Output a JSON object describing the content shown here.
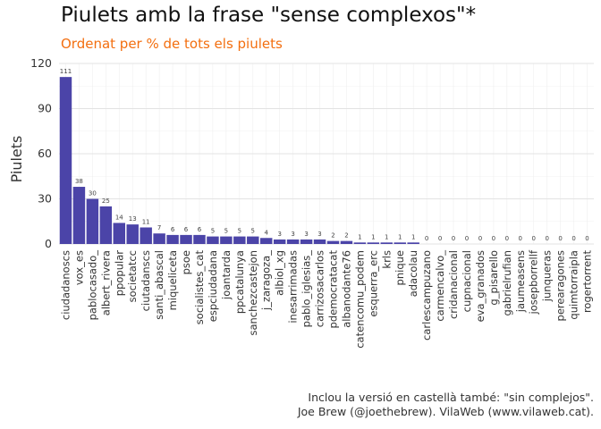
{
  "title": "Piulets amb la frase \"sense complexos\"*",
  "subtitle": "Ordenat per % de tots els piulets",
  "caption_line1": "Inclou la versió en castellà també: \"sin complejos\".",
  "caption_line2": "Joe Brew (@joethebrew). VilaWeb (www.vilaweb.cat).",
  "colors": {
    "bar": "#4b44a8",
    "grid": "#e3e3e3",
    "subtitle": "#f36f10"
  },
  "chart_data": {
    "type": "bar",
    "title": "Piulets amb la frase \"sense complexos\"*",
    "subtitle": "Ordenat per % de tots els piulets",
    "xlabel": "",
    "ylabel": "Piulets",
    "ylim": [
      0,
      120
    ],
    "yticks": [
      0,
      30,
      60,
      90,
      120
    ],
    "grid": true,
    "categories": [
      "ciudadanoscs",
      "vox_es",
      "pablocasado_",
      "albert_rivera",
      "ppopular",
      "societatcc",
      "ciutadanscs",
      "santi_abascal",
      "miqueliceta",
      "psoe",
      "socialistes_cat",
      "espciudadana",
      "joantarda",
      "ppcatalunya",
      "sanchezcastejon",
      "j_zaragoza_",
      "albiol_xg",
      "inesarrimadas",
      "pablo_iglesias_",
      "carrizosacarlos",
      "pdemocratacat",
      "albanodante76",
      "catencomu_podem",
      "esquerra_erc",
      "krls",
      "pnique",
      "adacolau",
      "carlescampuzano",
      "carmencalvo_",
      "cridanacional",
      "cupnacional",
      "eva_granados",
      "g_pisarello",
      "gabrielrufian",
      "jaumeasens",
      "josepborrellf",
      "junqueras",
      "perearagones",
      "quimtorraipla",
      "rogertorrent"
    ],
    "values": [
      111,
      38,
      30,
      25,
      14,
      13,
      11,
      7,
      6,
      6,
      6,
      5,
      5,
      5,
      5,
      4,
      3,
      3,
      3,
      3,
      2,
      2,
      1,
      1,
      1,
      1,
      1,
      0,
      0,
      0,
      0,
      0,
      0,
      0,
      0,
      0,
      0,
      0,
      0,
      0
    ]
  }
}
